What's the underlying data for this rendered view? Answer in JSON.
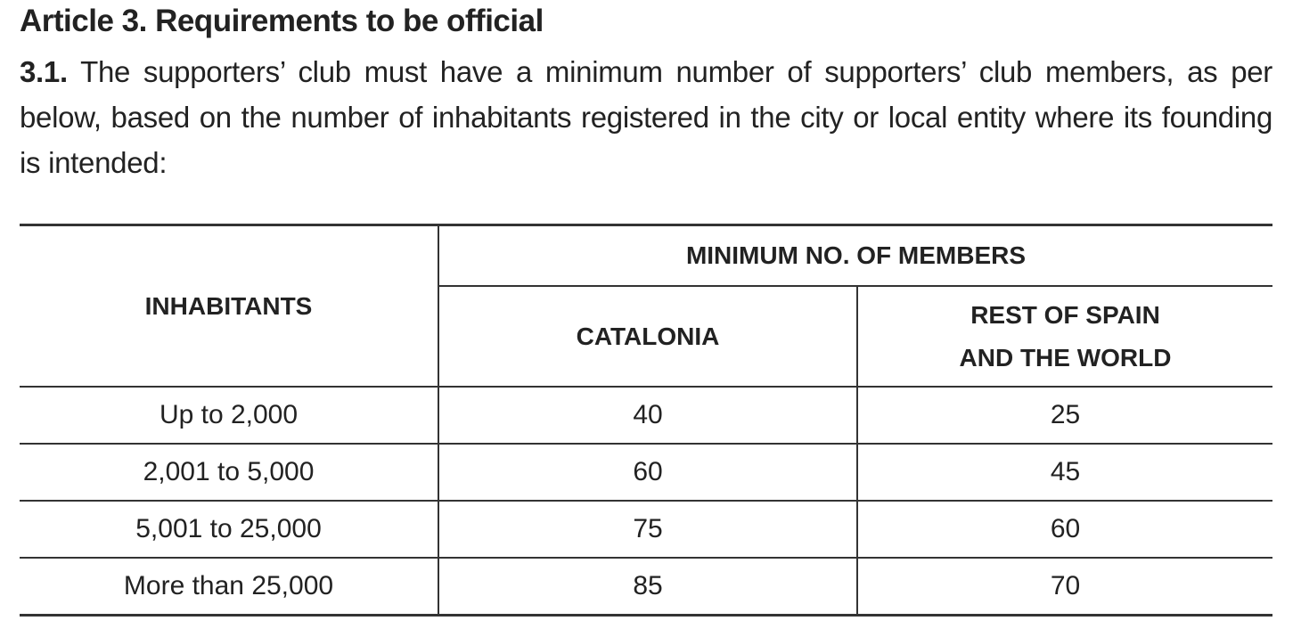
{
  "heading": "Article 3. Requirements to be official",
  "paragraph": {
    "number": "3.1.",
    "text": "The supporters’ club must have a minimum number of supporters’ club members, as per below, based on the number of inhabitants registered in the city or local entity where its founding is intended:"
  },
  "table": {
    "header": {
      "inhabitants": "INHABITANTS",
      "group": "MINIMUM NO. OF MEMBERS",
      "catalonia": "CATALONIA",
      "rest": [
        "REST OF SPAIN",
        "AND THE WORLD"
      ]
    },
    "rows": [
      [
        "Up to 2,000",
        40,
        25
      ],
      [
        "2,001 to 5,000",
        60,
        45
      ],
      [
        "5,001 to 25,000",
        75,
        60
      ],
      [
        "More than 25,000",
        85,
        70
      ]
    ]
  }
}
